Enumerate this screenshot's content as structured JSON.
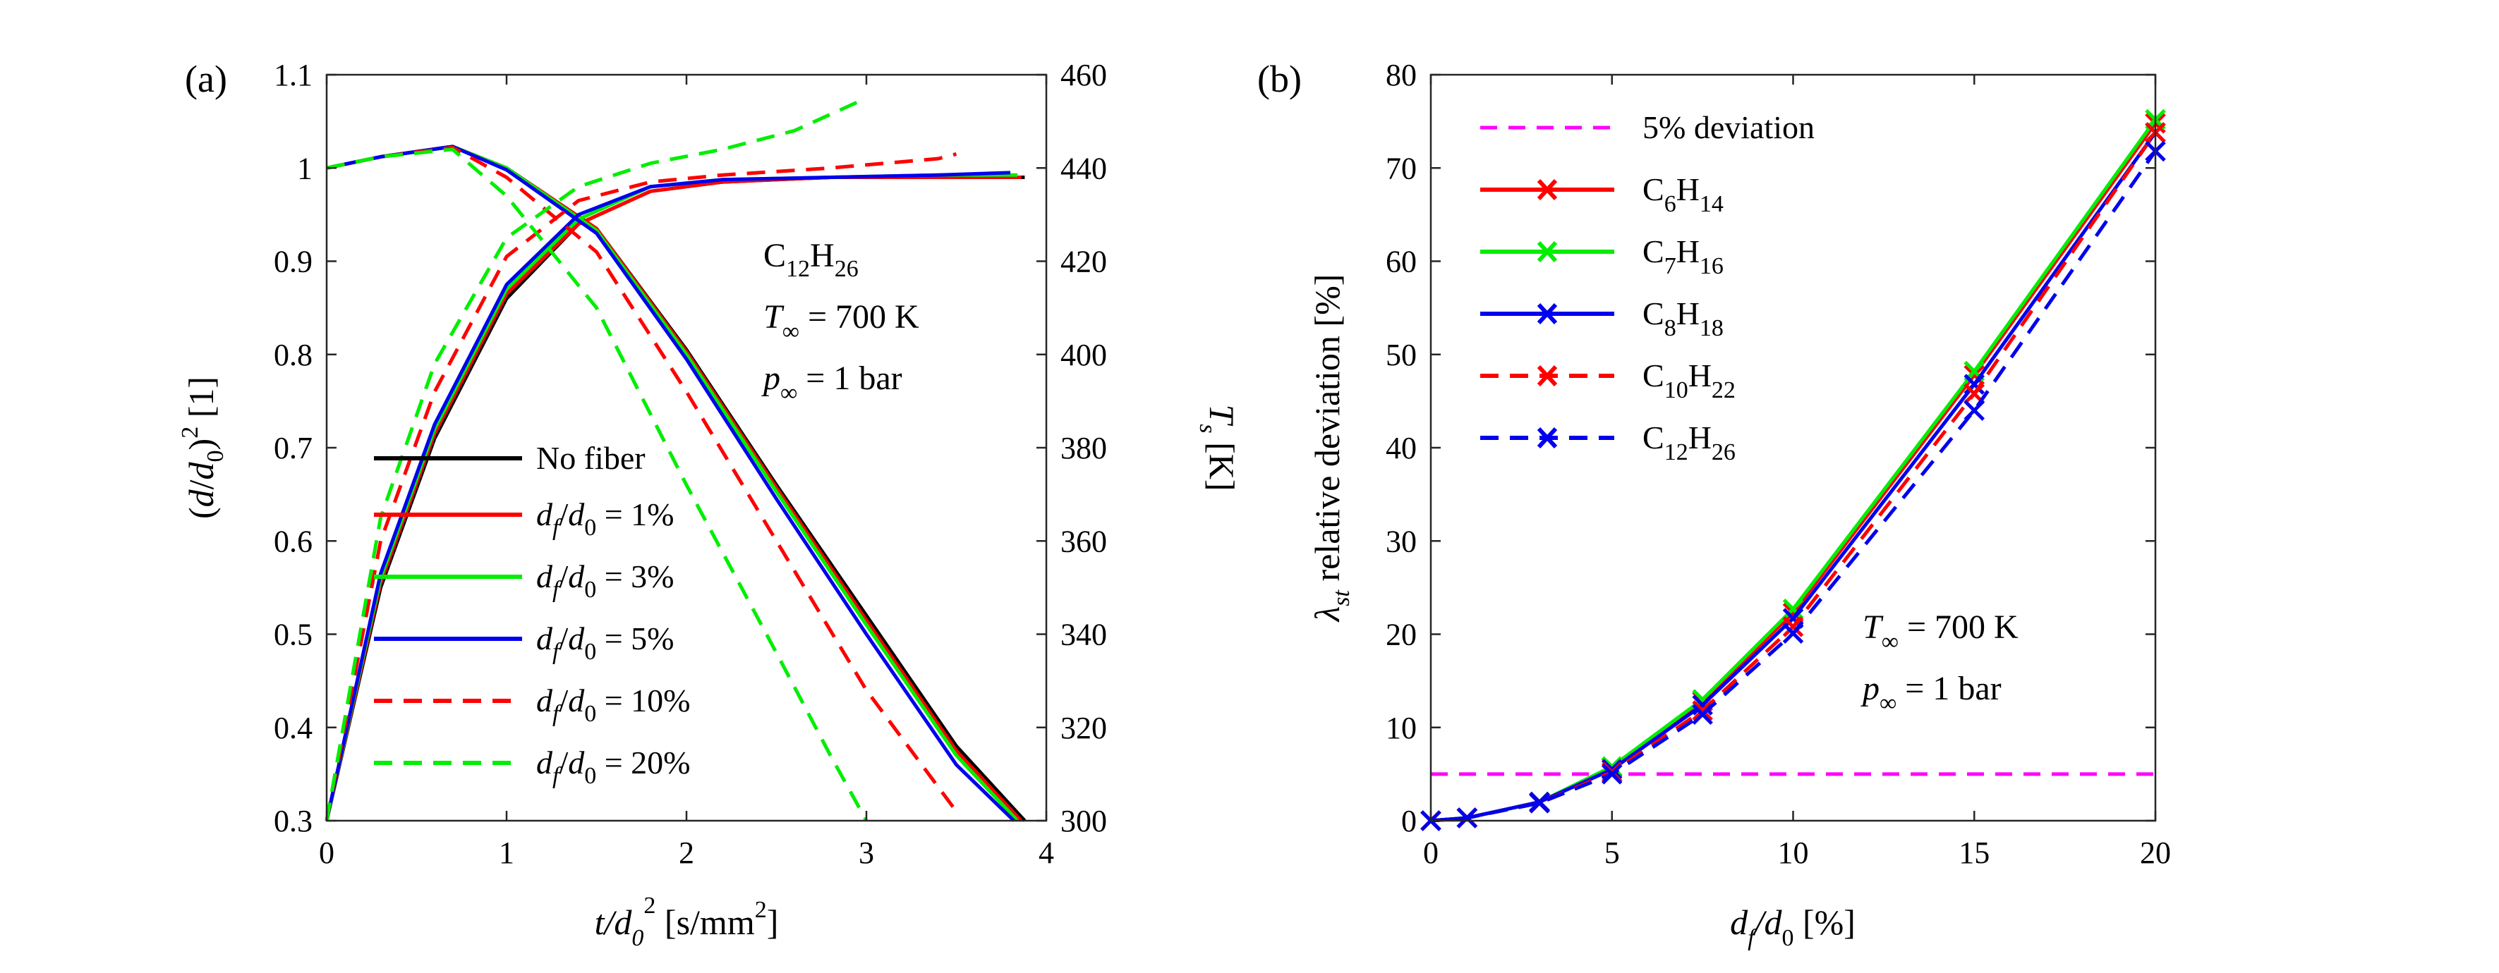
{
  "chart_data": [
    {
      "panel": "(a)",
      "type": "line",
      "xlabel": {
        "main": "t/d",
        "sub": "0",
        "sup": "2",
        "unit_main": " [s/mm",
        "unit_sup": "2",
        "unit_end": "]"
      },
      "ylabel_left": "(d/d0)^2 [1]",
      "ylabel_right": "T_s [K]",
      "xlim": [
        0,
        4
      ],
      "ylim_left": [
        0.3,
        1.1
      ],
      "ylim_right": [
        300,
        460
      ],
      "xticks": [
        "0",
        "1",
        "2",
        "3",
        "4"
      ],
      "yticks_left": [
        "0.3",
        "0.4",
        "0.5",
        "0.6",
        "0.7",
        "0.8",
        "0.9",
        "1",
        "1.1"
      ],
      "yticks_right": [
        "300",
        "320",
        "340",
        "360",
        "380",
        "400",
        "420",
        "440",
        "460"
      ],
      "annotation": {
        "species": "C12H26",
        "T_inf": " = 700 K",
        "p_inf": " = 1 bar"
      },
      "legend_position": "left-center",
      "series": [
        {
          "name": "No fiber",
          "color": "#000000",
          "dash": "solid",
          "diameter_sq": {
            "x": [
              0,
              0.3,
              0.7,
              1.0,
              1.5,
              2.0,
              2.5,
              3.0,
              3.5,
              3.88
            ],
            "y": [
              1.0,
              1.012,
              1.023,
              1.0,
              0.935,
              0.805,
              0.66,
              0.52,
              0.38,
              0.3
            ]
          },
          "temperature": {
            "x": [
              0,
              0.3,
              0.6,
              1.0,
              1.4,
              1.8,
              2.2,
              2.8,
              3.4,
              3.88
            ],
            "y": [
              300,
              350,
              382,
              412,
              428,
              435,
              437,
              438,
              438,
              438
            ]
          }
        },
        {
          "name": "d_f/d_0 = 1%",
          "color": "#ff0000",
          "dash": "solid",
          "diameter_sq": {
            "x": [
              0,
              0.3,
              0.7,
              1.0,
              1.5,
              2.0,
              2.5,
              3.0,
              3.5,
              3.86
            ],
            "y": [
              1.0,
              1.012,
              1.023,
              1.0,
              0.935,
              0.803,
              0.657,
              0.515,
              0.375,
              0.3
            ]
          },
          "temperature": {
            "x": [
              0,
              0.3,
              0.6,
              1.0,
              1.4,
              1.8,
              2.2,
              2.8,
              3.4,
              3.86
            ],
            "y": [
              300,
              351,
              383,
              413,
              428,
              435,
              437,
              438,
              438,
              438
            ]
          }
        },
        {
          "name": "d_f/d_0 = 3%",
          "color": "#00ee00",
          "dash": "solid",
          "diameter_sq": {
            "x": [
              0,
              0.3,
              0.7,
              1.0,
              1.5,
              2.0,
              2.5,
              3.0,
              3.5,
              3.84
            ],
            "y": [
              1.0,
              1.012,
              1.023,
              1.0,
              0.933,
              0.8,
              0.653,
              0.51,
              0.37,
              0.3
            ]
          },
          "temperature": {
            "x": [
              0,
              0.3,
              0.6,
              1.0,
              1.4,
              1.8,
              2.2,
              2.8,
              3.4,
              3.84
            ],
            "y": [
              300,
              352,
              384,
              414,
              429,
              436,
              437.5,
              438,
              438.5,
              438.5
            ]
          }
        },
        {
          "name": "d_f/d_0 = 5%",
          "color": "#0000ee",
          "dash": "solid",
          "diameter_sq": {
            "x": [
              0,
              0.3,
              0.7,
              1.0,
              1.5,
              2.0,
              2.5,
              3.0,
              3.5,
              3.82
            ],
            "y": [
              1.0,
              1.012,
              1.023,
              0.998,
              0.93,
              0.795,
              0.645,
              0.5,
              0.36,
              0.3
            ]
          },
          "temperature": {
            "x": [
              0,
              0.3,
              0.6,
              1.0,
              1.4,
              1.8,
              2.2,
              2.8,
              3.4,
              3.8
            ],
            "y": [
              300,
              353,
              385,
              415,
              430,
              436,
              437.5,
              438,
              438.5,
              439
            ]
          }
        },
        {
          "name": "d_f/d_0 = 10%",
          "color": "#ff0000",
          "dash": "dashed",
          "diameter_sq": {
            "x": [
              0,
              0.3,
              0.7,
              1.0,
              1.5,
              2.0,
              2.5,
              3.0,
              3.5
            ],
            "y": [
              1.0,
              1.012,
              1.022,
              0.99,
              0.91,
              0.76,
              0.6,
              0.44,
              0.31
            ]
          },
          "temperature": {
            "x": [
              0,
              0.3,
              0.6,
              1.0,
              1.4,
              1.8,
              2.2,
              2.8,
              3.4,
              3.5
            ],
            "y": [
              300,
              360,
              392,
              421,
              433,
              437,
              438.5,
              440,
              442,
              443
            ]
          }
        },
        {
          "name": "d_f/d_0 = 20%",
          "color": "#00ee00",
          "dash": "dashed",
          "diameter_sq": {
            "x": [
              0,
              0.3,
              0.7,
              1.0,
              1.5,
              2.0,
              2.5,
              2.8,
              3.0
            ],
            "y": [
              1.0,
              1.012,
              1.02,
              0.97,
              0.85,
              0.66,
              0.48,
              0.37,
              0.3
            ]
          },
          "temperature": {
            "x": [
              0,
              0.3,
              0.6,
              1.0,
              1.4,
              1.8,
              2.2,
              2.6,
              3.0
            ],
            "y": [
              300,
              365,
              398,
              425,
              436,
              441,
              444,
              448,
              455
            ]
          }
        }
      ]
    },
    {
      "panel": "(b)",
      "type": "line",
      "xlabel": {
        "main1": "d",
        "sub": "f",
        "main2": "/d",
        "sub2": "0",
        "unit": " [%]"
      },
      "ylabel": {
        "sym": "λ",
        "sub": "st",
        "text": " relative deviation [%]"
      },
      "xlim": [
        0,
        20
      ],
      "ylim": [
        0,
        80
      ],
      "xticks": [
        "0",
        "5",
        "10",
        "15",
        "20"
      ],
      "yticks": [
        "0",
        "10",
        "20",
        "30",
        "40",
        "50",
        "60",
        "70",
        "80"
      ],
      "annotation": {
        "T_inf": " = 700 K",
        "p_inf": " = 1 bar"
      },
      "legend_position": "top-left",
      "threshold": {
        "name": "5% deviation",
        "value": 5,
        "color": "#ff00ff",
        "dash": "dashed"
      },
      "x": [
        0,
        1,
        3,
        5,
        7.5,
        10,
        15,
        20
      ],
      "series": [
        {
          "name": "C6H14",
          "base": "C",
          "n1": "6",
          "mid": "H",
          "n2": "14",
          "color": "#ff0000",
          "dash": "solid",
          "marker": "x",
          "values": [
            0,
            0.3,
            2.0,
            5.7,
            12.8,
            22.3,
            47.8,
            74.8
          ]
        },
        {
          "name": "C7H16",
          "base": "C",
          "n1": "7",
          "mid": "H",
          "n2": "16",
          "color": "#00ee00",
          "dash": "solid",
          "marker": "x",
          "values": [
            0,
            0.3,
            2.0,
            5.8,
            13.0,
            22.7,
            48.2,
            75.2
          ]
        },
        {
          "name": "C8H18",
          "base": "C",
          "n1": "8",
          "mid": "H",
          "n2": "18",
          "color": "#0000ee",
          "dash": "solid",
          "marker": "x",
          "values": [
            0,
            0.3,
            2.0,
            5.5,
            12.4,
            21.7,
            46.8,
            73.8
          ]
        },
        {
          "name": "C10H22",
          "base": "C",
          "n1": "10",
          "mid": "H",
          "n2": "22",
          "color": "#ff0000",
          "dash": "dashed",
          "marker": "x",
          "values": [
            0,
            0.3,
            1.9,
            5.2,
            11.8,
            20.8,
            45.8,
            73.8
          ]
        },
        {
          "name": "C12H26",
          "base": "C",
          "n1": "12",
          "mid": "H",
          "n2": "26",
          "color": "#0000ee",
          "dash": "dashed",
          "marker": "x",
          "values": [
            0,
            0.3,
            1.9,
            5.0,
            11.4,
            20.1,
            44.0,
            71.8
          ]
        }
      ]
    }
  ]
}
